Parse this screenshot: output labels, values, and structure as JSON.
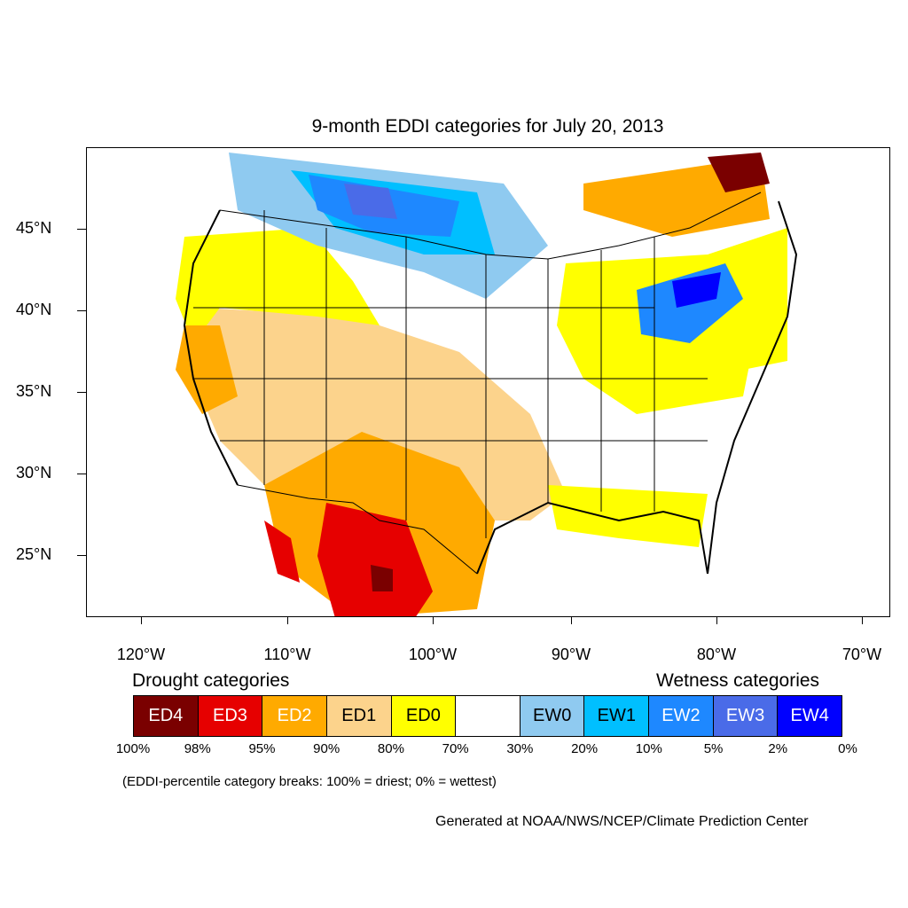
{
  "title": "9-month EDDI categories for July 20, 2013",
  "map": {
    "lat_labels": [
      "45°N",
      "40°N",
      "35°N",
      "30°N",
      "25°N"
    ],
    "lon_labels": [
      "120°W",
      "110°W",
      "100°W",
      "90°W",
      "80°W",
      "70°W"
    ],
    "colors": {
      "ED4": "#7a0000",
      "ED3": "#e60000",
      "ED2": "#ffaa00",
      "ED1": "#fcd38c",
      "ED0": "#ffff00",
      "EW0": "#8fcaf0",
      "EW1": "#00bfff",
      "EW2": "#1e88ff",
      "EW3": "#4a6be8",
      "EW4": "#0000ff"
    }
  },
  "legend": {
    "drought_heading": "Drought categories",
    "wetness_heading": "Wetness categories",
    "categories": [
      {
        "label": "ED4",
        "color": "#7a0000",
        "text_color": "#ffffff"
      },
      {
        "label": "ED3",
        "color": "#e60000",
        "text_color": "#ffffff"
      },
      {
        "label": "ED2",
        "color": "#ffaa00",
        "text_color": "#ffffff"
      },
      {
        "label": "ED1",
        "color": "#fcd38c",
        "text_color": "#000000"
      },
      {
        "label": "ED0",
        "color": "#ffff00",
        "text_color": "#000000"
      },
      {
        "label": "",
        "color": "#ffffff",
        "text_color": "#000000"
      },
      {
        "label": "EW0",
        "color": "#8fcaf0",
        "text_color": "#000000"
      },
      {
        "label": "EW1",
        "color": "#00bfff",
        "text_color": "#000000"
      },
      {
        "label": "EW2",
        "color": "#1e88ff",
        "text_color": "#ffffff"
      },
      {
        "label": "EW3",
        "color": "#4a6be8",
        "text_color": "#ffffff"
      },
      {
        "label": "EW4",
        "color": "#0000ff",
        "text_color": "#ffffff"
      }
    ],
    "breaks": [
      "100%",
      "98%",
      "95%",
      "90%",
      "80%",
      "70%",
      "30%",
      "20%",
      "10%",
      "5%",
      "2%",
      "0%"
    ]
  },
  "note": "(EDDI-percentile category breaks: 100% = driest; 0% = wettest)",
  "credit": "Generated at NOAA/NWS/NCEP/Climate Prediction Center"
}
